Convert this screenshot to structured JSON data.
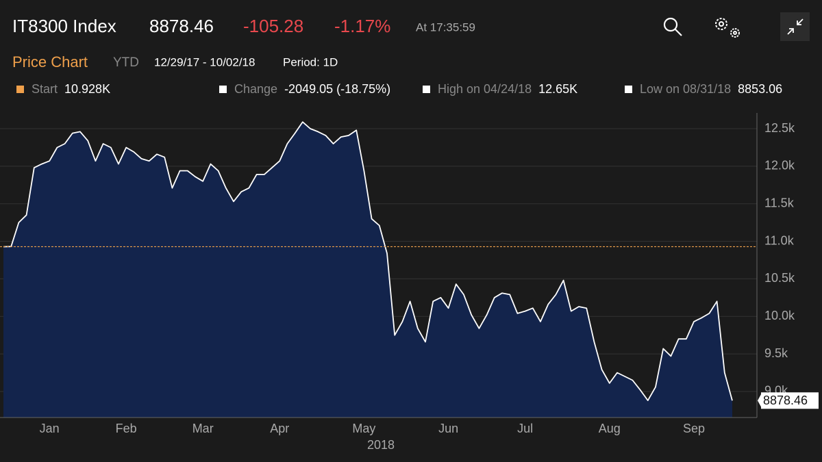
{
  "header": {
    "ticker": "IT8300 Index",
    "price": "8878.46",
    "change": "-105.28",
    "change_pct": "-1.17%",
    "time": "At 17:35:59"
  },
  "toolbar": {
    "title": "Price Chart",
    "range": "YTD",
    "dates": "12/29/17 - 10/02/18",
    "period": "Period: 1D"
  },
  "chart_data": {
    "type": "area",
    "legend": [
      {
        "name": "Start",
        "value": 10928,
        "value_label": "10.928K",
        "color": "#f0a04b"
      },
      {
        "name": "Change",
        "label": "-2049.05 (-18.75%)",
        "color": "#ffffff"
      },
      {
        "name": "High on 04/24/18",
        "label": "12.65K",
        "color": "#ffffff"
      },
      {
        "name": "Low on 08/31/18",
        "label": "8853.06",
        "color": "#ffffff"
      }
    ],
    "categories": [
      null,
      null,
      null,
      null,
      null,
      null,
      "Jan",
      null,
      null,
      null,
      null,
      null,
      null,
      null,
      null,
      null,
      "Feb",
      null,
      null,
      null,
      null,
      null,
      null,
      null,
      null,
      null,
      "Mar",
      null,
      null,
      null,
      null,
      null,
      null,
      null,
      null,
      null,
      "Apr",
      null,
      null,
      null,
      null,
      null,
      null,
      null,
      null,
      null,
      null,
      "May",
      null,
      null,
      null,
      null,
      null,
      null,
      null,
      null,
      null,
      null,
      "Jun",
      null,
      null,
      null,
      null,
      null,
      null,
      null,
      null,
      null,
      "Jul",
      null,
      null,
      null,
      null,
      null,
      null,
      null,
      null,
      null,
      null,
      "Aug",
      null,
      null,
      null,
      null,
      null,
      null,
      null,
      null,
      null,
      null,
      "Sep",
      null,
      null,
      null,
      null,
      null
    ],
    "xlabel": "2018",
    "values": [
      10928,
      10930,
      11250,
      11350,
      11980,
      12030,
      12070,
      12250,
      12300,
      12440,
      12460,
      12340,
      12070,
      12300,
      12250,
      12030,
      12250,
      12190,
      12100,
      12070,
      12160,
      12120,
      11710,
      11940,
      11940,
      11860,
      11800,
      12030,
      11940,
      11710,
      11530,
      11660,
      11710,
      11890,
      11890,
      11980,
      12070,
      12300,
      12440,
      12590,
      12500,
      12460,
      12410,
      12300,
      12390,
      12410,
      12480,
      11940,
      11300,
      11210,
      10840,
      9750,
      9930,
      10200,
      9840,
      9660,
      10200,
      10250,
      10110,
      10430,
      10290,
      10020,
      9840,
      10020,
      10250,
      10310,
      10290,
      10040,
      10070,
      10110,
      9930,
      10160,
      10290,
      10480,
      10070,
      10130,
      10110,
      9660,
      9290,
      9110,
      9250,
      9200,
      9150,
      9020,
      8880,
      9060,
      9570,
      9470,
      9700,
      9700,
      9930,
      9980,
      10040,
      10200,
      9250,
      8878.46
    ],
    "color": "#ffffff",
    "fill": "#13244c",
    "ylim": [
      8653,
      12710
    ],
    "yticks": [
      {
        "value": 9000,
        "label": "9.0k"
      },
      {
        "value": 9500,
        "label": "9.5k"
      },
      {
        "value": 10000,
        "label": "10.0k"
      },
      {
        "value": 10500,
        "label": "10.5k"
      },
      {
        "value": 11000,
        "label": "11.0k"
      },
      {
        "value": 11500,
        "label": "11.5k"
      },
      {
        "value": 12000,
        "label": "12.0k"
      },
      {
        "value": 12500,
        "label": "12.5k"
      }
    ],
    "grid": true
  }
}
